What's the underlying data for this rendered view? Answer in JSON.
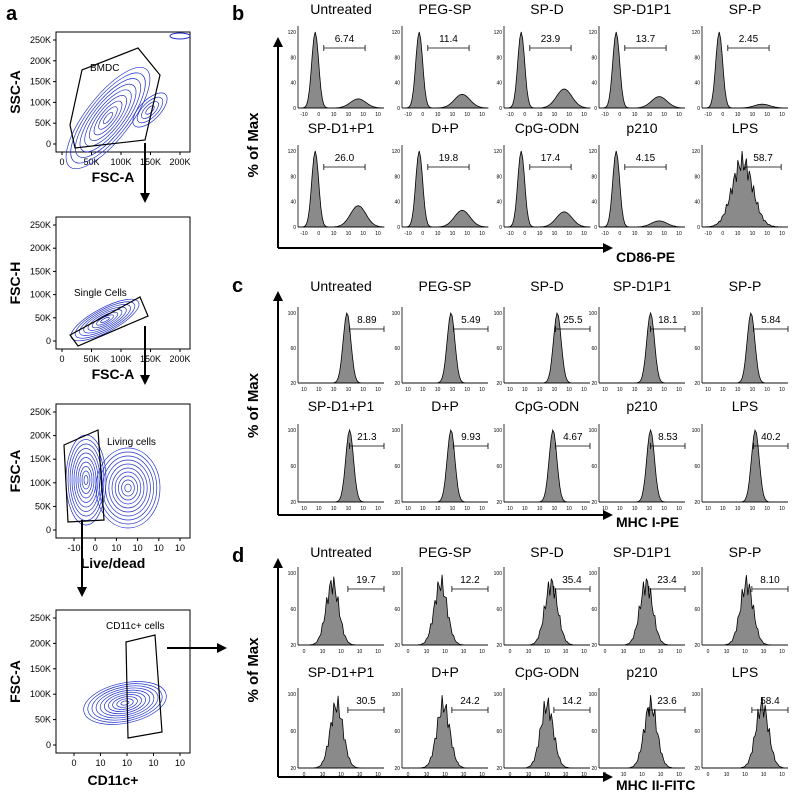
{
  "figure_labels": {
    "a": "a",
    "b": "b",
    "c": "c",
    "d": "d"
  },
  "gating": {
    "ytick_labels": [
      "250K",
      "200K",
      "150K",
      "100K",
      "50K",
      "0"
    ],
    "xtick_labels": [
      "0",
      "50K",
      "100K",
      "150K",
      "200K"
    ],
    "panel1": {
      "ylabel": "SSC-A",
      "xlabel": "FSC-A",
      "gate": "BMDC"
    },
    "panel2": {
      "ylabel": "FSC-H",
      "xlabel": "FSC-A",
      "gate": "Single Cells"
    },
    "panel3": {
      "ylabel": "FSC-A",
      "xlabel": "Live/dead",
      "gate": "Living cells"
    },
    "panel4": {
      "ylabel": "FSC-A",
      "xlabel": "CD11c+",
      "gate": "CD11c+ cells"
    }
  },
  "colors": {
    "contour": "#2233cc",
    "hist_fill": "#8a8a8a",
    "axis": "#000000"
  },
  "chart_data": [
    {
      "type": "histogram-grid",
      "panel": "b",
      "xlabel": "CD86-PE",
      "ylabel": "% of Max",
      "xtick_labels": [
        "-10",
        "0",
        "10",
        "10",
        "10",
        "10"
      ],
      "ytick_labels": [
        "120",
        "80",
        "40",
        "0"
      ],
      "conditions": [
        "Untreated",
        "PEG-SP",
        "SP-D",
        "SP-D1P1",
        "SP-P",
        "SP-D1+P1",
        "D+P",
        "CpG-ODN",
        "p210",
        "LPS"
      ],
      "values": [
        "6.74",
        "11.4",
        "23.9",
        "13.7",
        "2.45",
        "26.0",
        "19.8",
        "17.4",
        "4.15",
        "58.7"
      ]
    },
    {
      "type": "histogram-grid",
      "panel": "c",
      "xlabel": "MHC I-PE",
      "ylabel": "% of Max",
      "xtick_labels": [
        "10",
        "10",
        "10",
        "10",
        "10",
        "10"
      ],
      "ytick_labels": [
        "100",
        "60",
        "20"
      ],
      "conditions": [
        "Untreated",
        "PEG-SP",
        "SP-D",
        "SP-D1P1",
        "SP-P",
        "SP-D1+P1",
        "D+P",
        "CpG-ODN",
        "p210",
        "LPS"
      ],
      "values": [
        "8.89",
        "5.49",
        "25.5",
        "18.1",
        "5.84",
        "21.3",
        "9.93",
        "4.67",
        "8.53",
        "40.2"
      ]
    },
    {
      "type": "histogram-grid",
      "panel": "d",
      "xlabel": "MHC II-FITC",
      "ylabel": "% of Max",
      "xtick_labels": [
        "0",
        "10",
        "10",
        "10",
        "10"
      ],
      "ytick_labels": [
        "100",
        "60",
        "20"
      ],
      "conditions": [
        "Untreated",
        "PEG-SP",
        "SP-D",
        "SP-D1P1",
        "SP-P",
        "SP-D1+P1",
        "D+P",
        "CpG-ODN",
        "p210",
        "LPS"
      ],
      "values": [
        "19.7",
        "12.2",
        "35.4",
        "23.4",
        "8.10",
        "30.5",
        "24.2",
        "14.2",
        "23.6",
        "58.4"
      ]
    }
  ]
}
